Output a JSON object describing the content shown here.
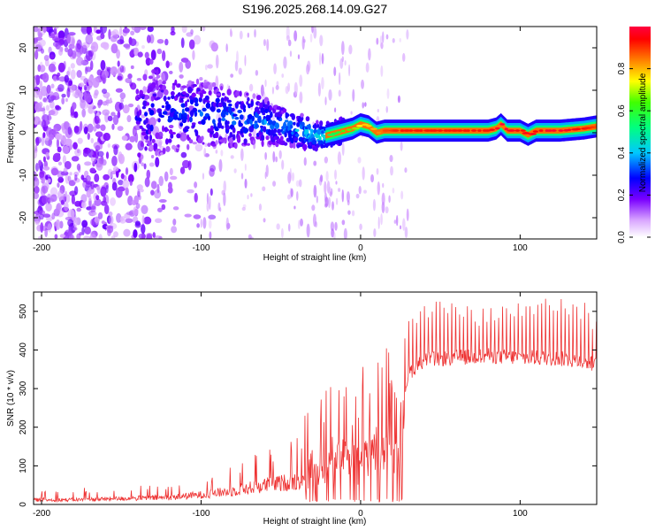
{
  "figure": {
    "title": "S196.2025.268.14.09.G27"
  },
  "chart_data": [
    {
      "type": "heatmap",
      "title": "S196.2025.268.14.09.G27",
      "xlabel": "Height of straight line (km)",
      "ylabel": "Frequency (Hz)",
      "xlim": [
        -205,
        148
      ],
      "ylim": [
        -25,
        25
      ],
      "xticks": [
        -200,
        -100,
        0,
        100
      ],
      "xtick_labels": [
        "-200",
        "-100",
        "0",
        "100"
      ],
      "yticks": [
        20,
        10,
        0,
        -10,
        -20
      ],
      "ytick_labels": [
        "20",
        "10",
        "0",
        "-10",
        "-20"
      ],
      "colorbar": {
        "label": "Normalized spectral amplitude",
        "range": [
          0,
          1
        ],
        "ticks": [
          0.0,
          0.2,
          0.4,
          0.6,
          0.8
        ],
        "tick_labels": [
          "0.0",
          "0.2",
          "0.4",
          "0.6",
          "0.8"
        ]
      },
      "ridge": {
        "description_values": "peak frequency (Hz) vs height (km)",
        "x": [
          -205,
          -140,
          -110,
          -90,
          -70,
          -50,
          -35,
          -25,
          -15,
          -5,
          0,
          5,
          10,
          15,
          25,
          40,
          60,
          80,
          85,
          88,
          92,
          100,
          105,
          110,
          115,
          125,
          140,
          148
        ],
        "y": [
          0,
          3,
          5,
          4,
          3,
          2,
          0,
          -1,
          0,
          1,
          2,
          1.5,
          0,
          0.5,
          0.5,
          0.5,
          0.5,
          0.5,
          1,
          2,
          0.5,
          0.5,
          -0.5,
          0.5,
          0.5,
          0.5,
          1,
          1.5
        ],
        "peak_amplitude": [
          0.15,
          0.25,
          0.3,
          0.32,
          0.35,
          0.35,
          0.4,
          0.45,
          0.5,
          0.6,
          0.7,
          0.7,
          0.75,
          0.8,
          0.85,
          0.85,
          0.85,
          0.85,
          0.9,
          0.95,
          0.9,
          0.85,
          0.9,
          0.85,
          0.9,
          0.9,
          0.85,
          0.8
        ]
      }
    },
    {
      "type": "line",
      "xlabel": "Height of straight line (km)",
      "ylabel": "SNR (10 * v/v)",
      "xlim": [
        -205,
        148
      ],
      "ylim": [
        0,
        550
      ],
      "xticks": [
        -200,
        -100,
        0,
        100
      ],
      "xtick_labels": [
        "-200",
        "-100",
        "0",
        "100"
      ],
      "yticks": [
        0,
        100,
        200,
        300,
        400,
        500
      ],
      "ytick_labels": [
        "0",
        "100",
        "200",
        "300",
        "400",
        "500"
      ],
      "series": [
        {
          "name": "SNR",
          "color": "#ee3333",
          "envelope_x": [
            -205,
            -180,
            -150,
            -120,
            -100,
            -80,
            -60,
            -40,
            -30,
            -20,
            -10,
            0,
            10,
            20,
            26,
            28,
            30,
            40,
            60,
            80,
            100,
            120,
            140,
            148
          ],
          "envelope_base": [
            12,
            12,
            15,
            18,
            25,
            35,
            50,
            60,
            70,
            90,
            100,
            110,
            110,
            120,
            120,
            300,
            340,
            375,
            380,
            385,
            380,
            380,
            370,
            360
          ],
          "envelope_peak": [
            35,
            40,
            60,
            50,
            80,
            120,
            160,
            200,
            270,
            300,
            360,
            390,
            400,
            420,
            250,
            470,
            500,
            520,
            510,
            500,
            520,
            540,
            520,
            480
          ]
        }
      ]
    }
  ],
  "colors": {
    "line": "#ee3333",
    "axis": "#000000",
    "background": "#ffffff"
  }
}
